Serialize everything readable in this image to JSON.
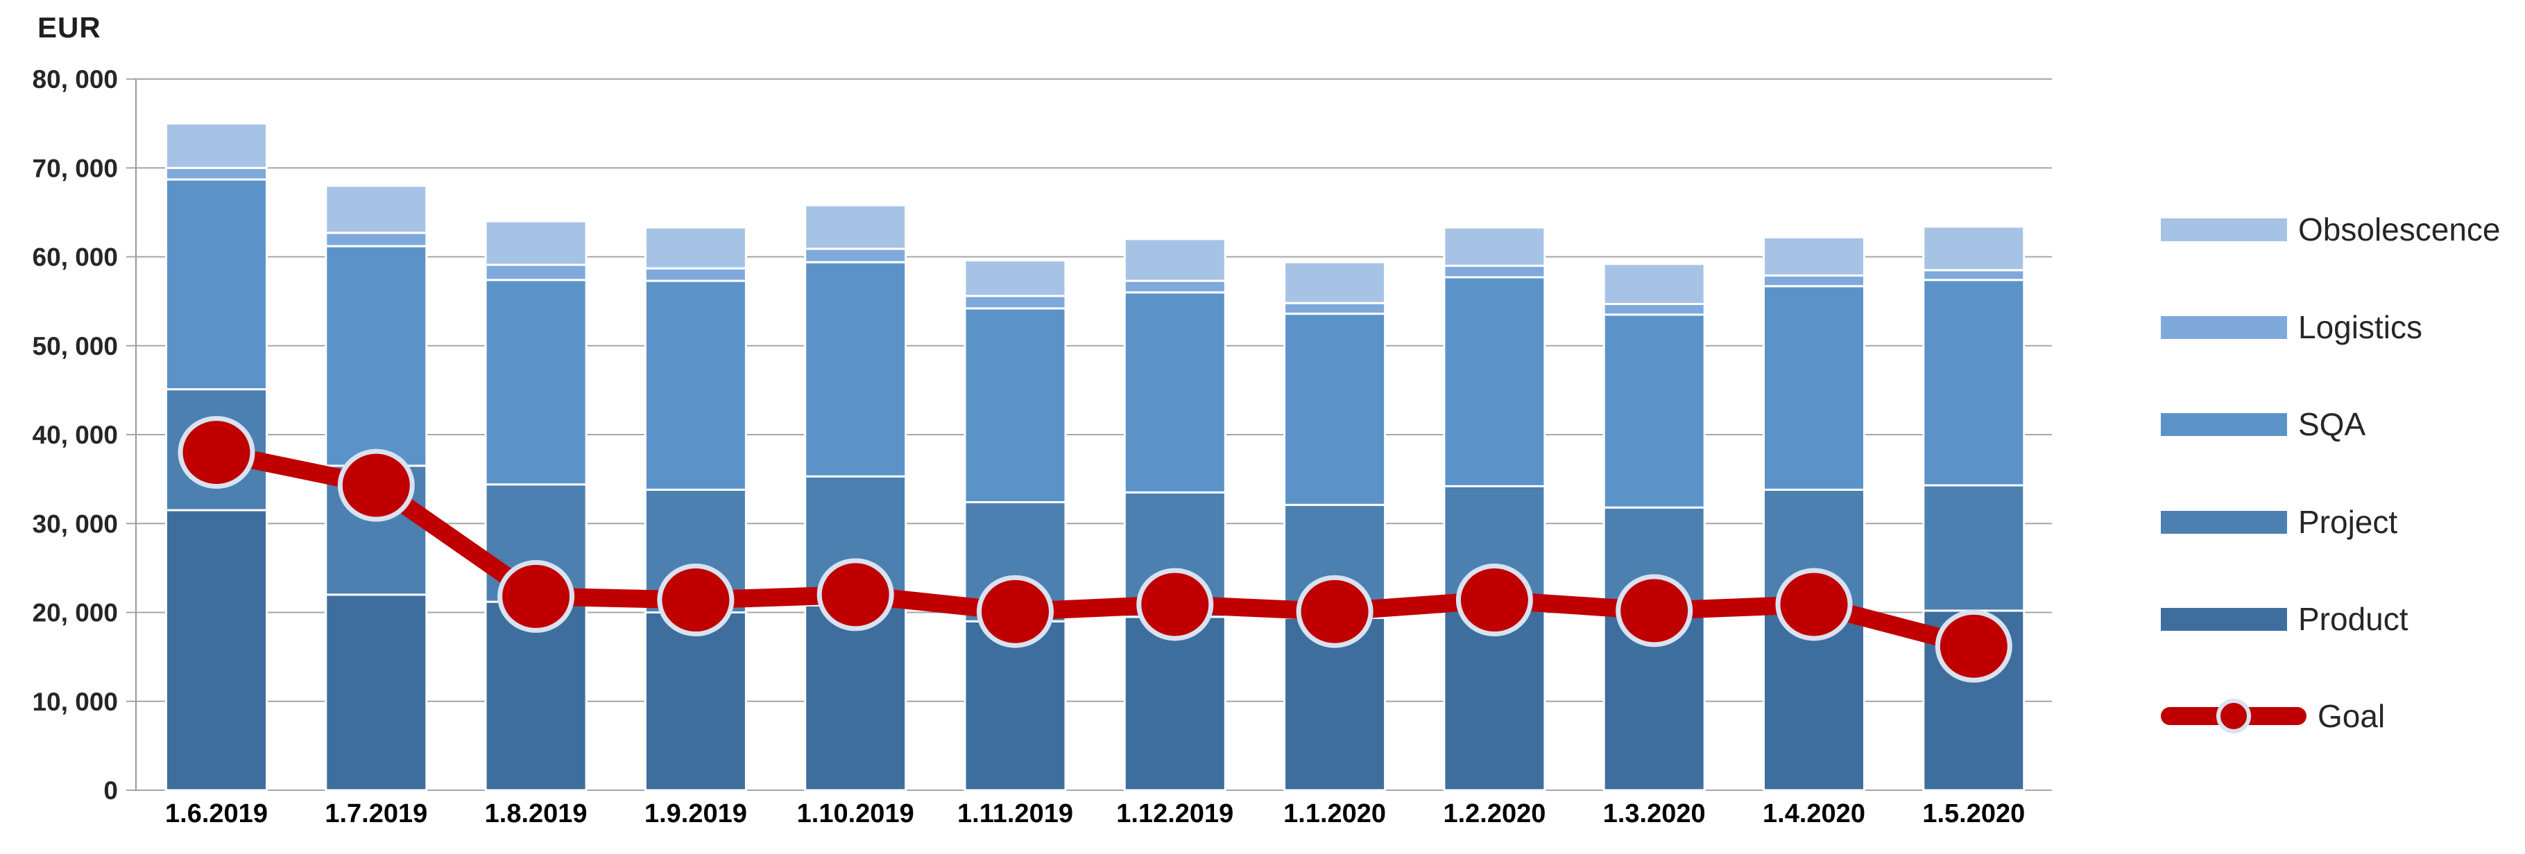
{
  "page": {
    "background": "#FFFFFF"
  },
  "chart_data": {
    "type": "bar",
    "stacked": true,
    "overlay_line_series": "Goal",
    "title": "",
    "ylabel": "EUR",
    "xlabel": "",
    "ylim": [
      0,
      80000
    ],
    "grid": true,
    "legend_position": "right",
    "grid_color": "#A6A6A6",
    "axis_line_color": "#999999",
    "tick_label_color": "#262626",
    "x_label_color": "#000000",
    "categories": [
      "1.6.2019",
      "1.7.2019",
      "1.8.2019",
      "1.9.2019",
      "1.10.2019",
      "1.11.2019",
      "1.12.2019",
      "1.1.2020",
      "1.2.2020",
      "1.3.2020",
      "1.4.2020",
      "1.5.2020"
    ],
    "stack_order": "bottom-to-top",
    "series": [
      {
        "name": "Product",
        "color": "#3E6E9D",
        "values": [
          31500,
          22000,
          21200,
          20000,
          20800,
          19000,
          19500,
          19400,
          20500,
          20000,
          20300,
          20200
        ]
      },
      {
        "name": "Project",
        "color": "#4C80B1",
        "values": [
          13600,
          14500,
          13200,
          13800,
          14500,
          13400,
          14000,
          12700,
          13700,
          11800,
          13500,
          14100
        ]
      },
      {
        "name": "SQA",
        "color": "#5B93C9",
        "values": [
          23600,
          24700,
          23000,
          23500,
          24100,
          21800,
          22500,
          21500,
          23500,
          21700,
          22900,
          23100
        ]
      },
      {
        "name": "Logistics",
        "color": "#7FA9DA",
        "values": [
          1300,
          1500,
          1700,
          1400,
          1500,
          1400,
          1300,
          1200,
          1300,
          1200,
          1200,
          1100
        ]
      },
      {
        "name": "Obsolescence",
        "color": "#A6C3E6",
        "values": [
          5000,
          5300,
          4900,
          4600,
          4900,
          4000,
          4700,
          4600,
          4300,
          4500,
          4300,
          4900
        ]
      }
    ],
    "stack_totals": [
      75000,
      68000,
      64000,
      63300,
      65800,
      59600,
      62000,
      59400,
      63300,
      59200,
      62200,
      63400
    ],
    "goal": {
      "name": "Goal",
      "color": "#C00000",
      "marker_halo_color": "#D9E2F0",
      "values": [
        38000,
        34300,
        21800,
        21400,
        22000,
        20100,
        20900,
        20100,
        21400,
        20200,
        20900,
        16200
      ]
    },
    "yticks": [
      {
        "value": 80000,
        "label": "80, 000"
      },
      {
        "value": 70000,
        "label": "70, 000"
      },
      {
        "value": 60000,
        "label": "60, 000"
      },
      {
        "value": 50000,
        "label": "50, 000"
      },
      {
        "value": 40000,
        "label": "40, 000"
      },
      {
        "value": 30000,
        "label": "30, 000"
      },
      {
        "value": 20000,
        "label": "20, 000"
      },
      {
        "value": 10000,
        "label": "10, 000"
      },
      {
        "value": 0,
        "label": "0"
      }
    ],
    "legend": [
      {
        "label": "Obsolescence",
        "color": "#A6C3E6",
        "kind": "box"
      },
      {
        "label": "Logistics",
        "color": "#7FA9DA",
        "kind": "box"
      },
      {
        "label": "SQA",
        "color": "#5B93C9",
        "kind": "box"
      },
      {
        "label": "Project",
        "color": "#4C80B1",
        "kind": "box"
      },
      {
        "label": "Product",
        "color": "#3E6E9D",
        "kind": "box"
      },
      {
        "label": "Goal",
        "color": "#C00000",
        "kind": "goal-line"
      }
    ]
  }
}
